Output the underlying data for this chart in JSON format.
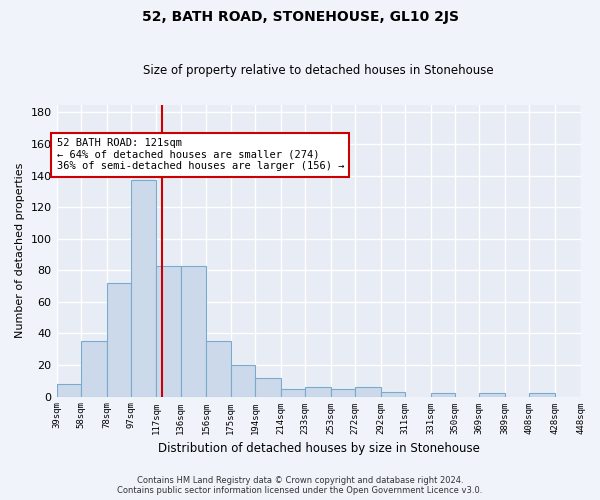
{
  "title": "52, BATH ROAD, STONEHOUSE, GL10 2JS",
  "subtitle": "Size of property relative to detached houses in Stonehouse",
  "xlabel": "Distribution of detached houses by size in Stonehouse",
  "ylabel": "Number of detached properties",
  "footer_line1": "Contains HM Land Registry data © Crown copyright and database right 2024.",
  "footer_line2": "Contains public sector information licensed under the Open Government Licence v3.0.",
  "bar_color": "#ccd9ea",
  "bar_edge_color": "#7aaace",
  "bg_color": "#e8edf5",
  "grid_color": "#ffffff",
  "vline_x": 121,
  "vline_color": "#cc0000",
  "annotation_text": "52 BATH ROAD: 121sqm\n← 64% of detached houses are smaller (274)\n36% of semi-detached houses are larger (156) →",
  "annotation_box_color": "#ffffff",
  "annotation_box_edge": "#cc0000",
  "bin_edges": [
    39,
    58,
    78,
    97,
    117,
    136,
    156,
    175,
    194,
    214,
    233,
    253,
    272,
    292,
    311,
    331,
    350,
    369,
    389,
    408,
    428
  ],
  "counts": [
    8,
    35,
    72,
    137,
    83,
    83,
    35,
    20,
    12,
    5,
    6,
    5,
    6,
    3,
    0,
    2,
    0,
    2,
    0,
    2
  ],
  "ylim": [
    0,
    185
  ],
  "yticks": [
    0,
    20,
    40,
    60,
    80,
    100,
    120,
    140,
    160,
    180
  ],
  "fig_bg": "#f0f4fa"
}
